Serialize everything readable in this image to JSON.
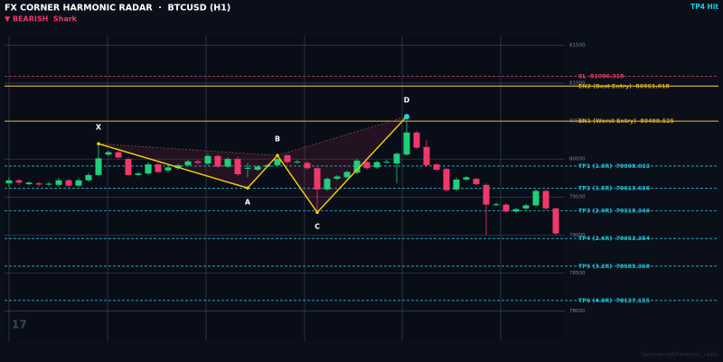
{
  "chart_data": {
    "type": "candlestick",
    "title": "FX CORNER HARMONIC RADAR  ·  BTCUSD (H1)",
    "subtitle": "▼ BEARISH  Shark",
    "status": "TP4 Hit",
    "watermark": "17",
    "footer": "fxcorner.net/harmonic_radar",
    "up_color": "#1ed07a",
    "down_color": "#f0386b",
    "ylim": [
      77600,
      81620
    ],
    "yticks": [
      78000,
      78500,
      79000,
      79500,
      80000,
      80500,
      81000,
      81500
    ],
    "grid": true,
    "open": [
      79680,
      79720,
      79670,
      79680,
      79670,
      79660,
      79720,
      79650,
      79720,
      79790,
      80060,
      80090,
      80000,
      79790,
      79810,
      79930,
      79850,
      79880,
      79920,
      79970,
      79940,
      80040,
      79900,
      80000,
      79880,
      79860,
      79900,
      79920,
      80050,
      79960,
      79950,
      79880,
      79600,
      79740,
      79760,
      79820,
      79960,
      79890,
      79960,
      79940,
      80060,
      80350,
      80160,
      79930,
      79870,
      79600,
      79730,
      79740,
      79660,
      79400,
      79400,
      79310,
      79350,
      79390,
      79580,
      79350
    ],
    "high": [
      79760,
      79740,
      79710,
      79700,
      79700,
      79750,
      79740,
      79750,
      79820,
      80200,
      80110,
      80110,
      80020,
      79830,
      79960,
      79950,
      79910,
      79940,
      79990,
      79990,
      80070,
      80060,
      80020,
      80030,
      79950,
      79920,
      79940,
      80030,
      80060,
      79990,
      79970,
      79890,
      79760,
      79790,
      79850,
      80000,
      79980,
      79980,
      79990,
      80090,
      80560,
      80370,
      80250,
      79950,
      79880,
      79760,
      79780,
      79750,
      79680,
      79430,
      79420,
      79360,
      79410,
      79600,
      79600,
      79360
    ],
    "low": [
      79620,
      79660,
      79650,
      79640,
      79650,
      79640,
      79630,
      79630,
      79700,
      79770,
      80040,
      80000,
      79770,
      79770,
      79790,
      79810,
      79830,
      79860,
      79900,
      79930,
      79920,
      79880,
      79880,
      79780,
      79760,
      79840,
      79890,
      79900,
      79940,
      79940,
      79860,
      79300,
      79580,
      79720,
      79740,
      79800,
      79860,
      79870,
      79940,
      79680,
      80040,
      80130,
      79900,
      79840,
      79570,
      79580,
      79710,
      79650,
      79000,
      79380,
      79290,
      79290,
      79330,
      79370,
      79330,
      79000
    ],
    "close": [
      79720,
      79690,
      79690,
      79665,
      79675,
      79720,
      79650,
      79720,
      79790,
      80010,
      80090,
      80020,
      79790,
      79810,
      79930,
      79830,
      79890,
      79920,
      79970,
      79950,
      80040,
      79900,
      80000,
      79800,
      79885,
      79900,
      79920,
      80000,
      79960,
      79965,
      79880,
      79600,
      79740,
      79770,
      79830,
      79980,
      79880,
      79960,
      79965,
      80070,
      80350,
      80150,
      79920,
      79860,
      79590,
      79730,
      79760,
      79670,
      79400,
      79405,
      79310,
      79340,
      79390,
      79580,
      79350,
      79020
    ],
    "pattern": {
      "labels": [
        "X",
        "A",
        "B",
        "C",
        "D"
      ],
      "index": [
        9,
        24,
        27,
        31,
        40
      ],
      "prices": [
        80202,
        79619,
        80048,
        79298,
        80560
      ],
      "color": "#f2c811"
    },
    "levels": [
      {
        "label": "SL  81090.318",
        "value": 81090.318,
        "color": "#e0405a",
        "dashed": true
      },
      {
        "label": "EN2 (Best Entry)  80961.018",
        "value": 80961.018,
        "color": "#d4a72c",
        "dashed": false
      },
      {
        "label": "EN1 (Worst Entry)  80499.525",
        "value": 80499.525,
        "color": "#d4a72c",
        "dashed": false
      },
      {
        "label": "TP1 (1.0R)  79908.033",
        "value": 79908.033,
        "color": "#22c0d0",
        "dashed": true
      },
      {
        "label": "TP2 (1.5R)  79613.636",
        "value": 79613.636,
        "color": "#22c0d0",
        "dashed": true
      },
      {
        "label": "TP3 (2.0R)  79318.340",
        "value": 79318.34,
        "color": "#22c0d0",
        "dashed": true
      },
      {
        "label": "TP4 (2.6R)  78953.354",
        "value": 78953.354,
        "color": "#22c0d0",
        "dashed": true
      },
      {
        "label": "TP5 (3.2R)  78589.368",
        "value": 78589.368,
        "color": "#22c0d0",
        "dashed": true
      },
      {
        "label": "TP6 (4.0R)  78137.155",
        "value": 78137.155,
        "color": "#22c0d0",
        "dashed": true
      }
    ]
  }
}
